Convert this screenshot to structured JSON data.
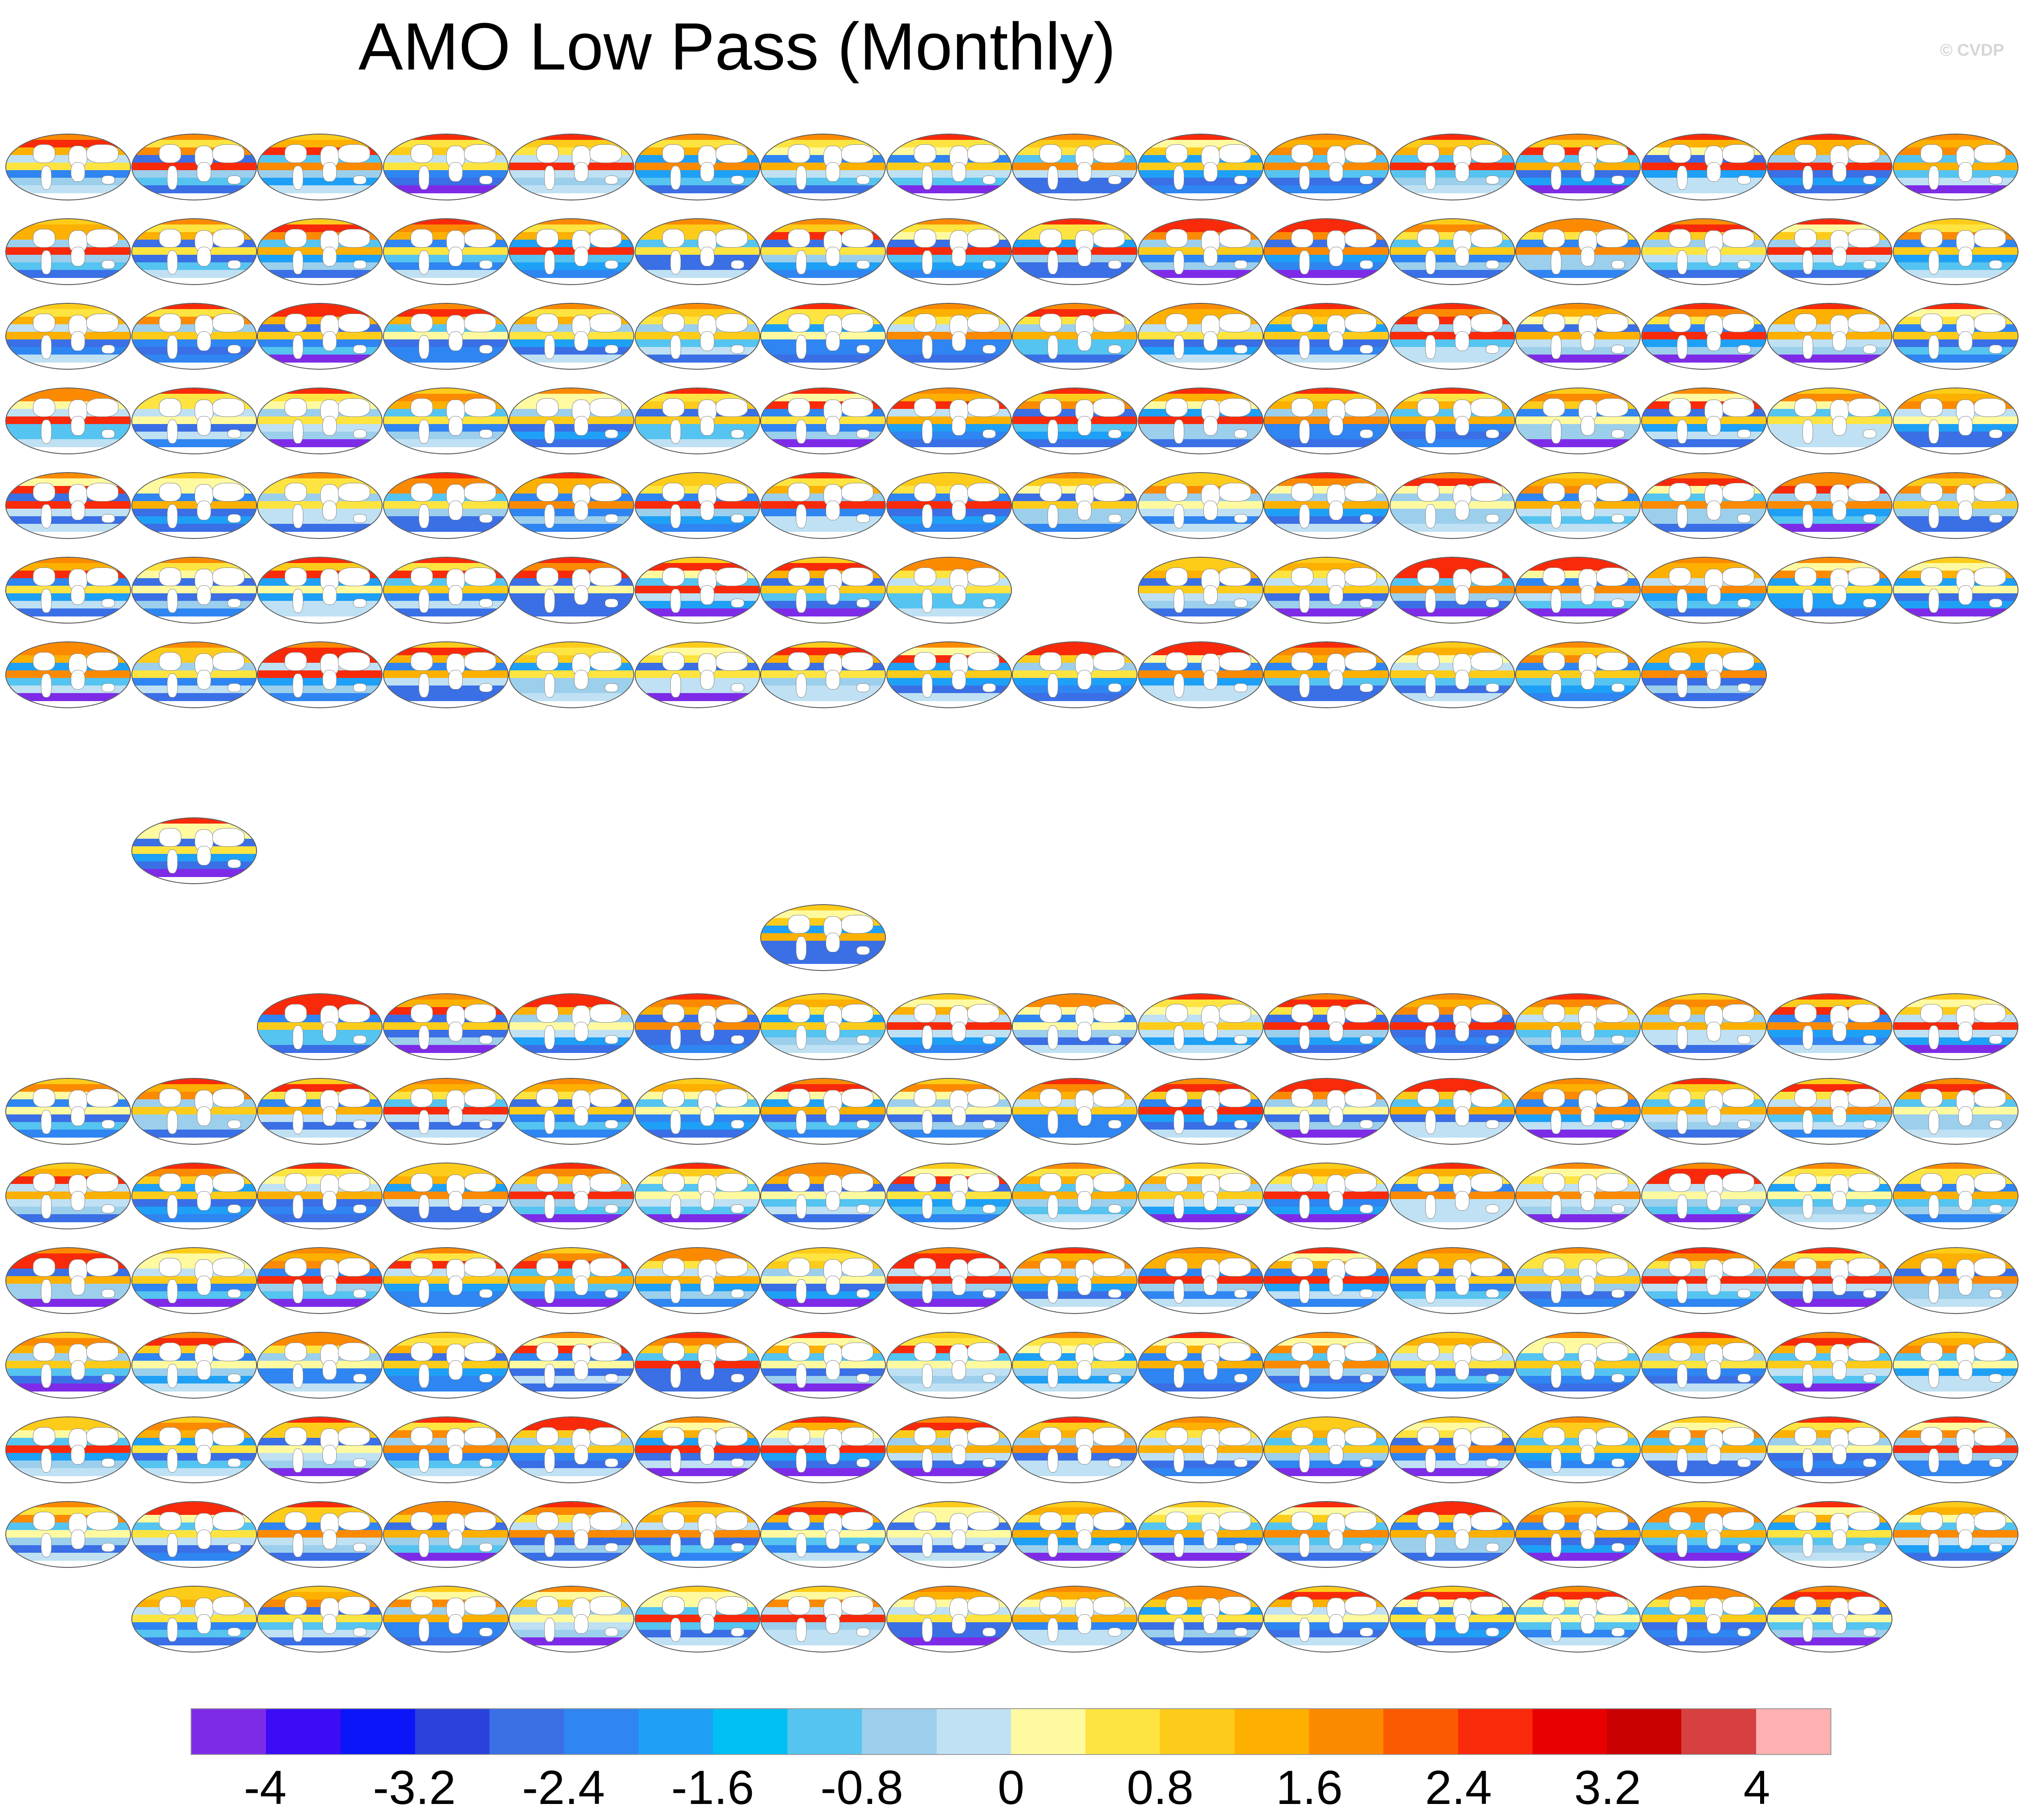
{
  "title": "AMO Low Pass (Monthly)",
  "credit": "© CVDP",
  "chart_data": {
    "type": "heatmap",
    "title": "AMO Low Pass (Monthly)",
    "colorbar": {
      "ticks": [
        "-4",
        "-3.2",
        "-2.4",
        "-1.6",
        "-0.8",
        "0",
        "0.8",
        "1.6",
        "2.4",
        "3.2",
        "4"
      ],
      "range": [
        -4.4,
        4.4
      ],
      "interval": 0.4,
      "colors": [
        "#7e2be8",
        "#3b0cf5",
        "#0a16f7",
        "#2a42db",
        "#3a6fe6",
        "#2f85f2",
        "#1ea0f6",
        "#00bff2",
        "#55c4f0",
        "#9ccfec",
        "#bfe1f3",
        "#fffaa0",
        "#fee440",
        "#fdcc1a",
        "#fdb000",
        "#fc8a00",
        "#fb5a00",
        "#f92a0a",
        "#e80000",
        "#c80000",
        "#d64040",
        "#ffb0b0"
      ]
    },
    "panels": []
  }
}
